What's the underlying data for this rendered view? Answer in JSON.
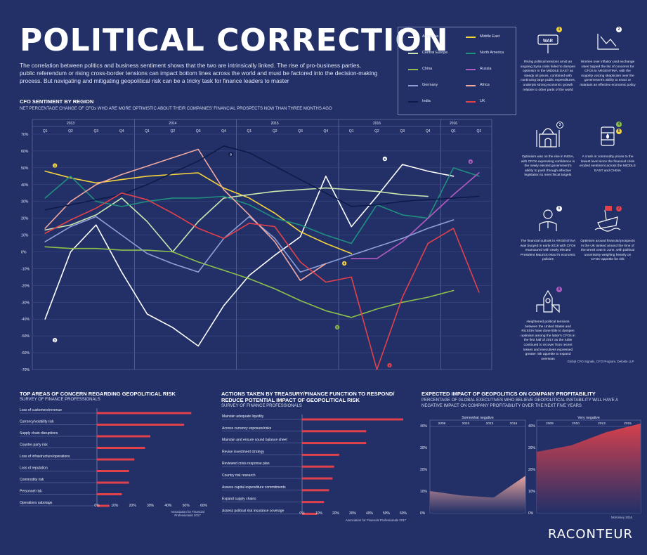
{
  "header": {
    "title": "POLITICAL CORRECTION",
    "intro": "The correlation between politics and business sentiment shows that the two are intrinsically linked. The rise of pro-business parties, public referendum or rising cross-border tensions can impact bottom lines across the world and must be factored into the decision-making process. But navigating and mitigating geopolitical risk can be a tricky task for finance leaders to master"
  },
  "main_chart": {
    "title": "CFO SENTIMENT BY REGION",
    "subtitle": "NET PERCENTAGE CHANGE OF CFOs WHO ARE MORE OPTIMISTIC ABOUT THEIR COMPANIES' FINANCIAL PROSPECTS NOW THAN THREE MONTHS AGO"
  },
  "legend": [
    {
      "name": "Argentina",
      "color": "#ffffff"
    },
    {
      "name": "Middle East",
      "color": "#f5d33c"
    },
    {
      "name": "Central Europe",
      "color": "#c9e6b0"
    },
    {
      "name": "North America",
      "color": "#1f8f7e"
    },
    {
      "name": "China",
      "color": "#8cc04a"
    },
    {
      "name": "Russia",
      "color": "#b35ac0"
    },
    {
      "name": "Germany",
      "color": "#8e9fd8"
    },
    {
      "name": "Africa",
      "color": "#f2a9a0"
    },
    {
      "name": "India",
      "color": "#0d1a4a"
    },
    {
      "name": "UK",
      "color": "#e0414b"
    }
  ],
  "cards": [
    {
      "num": "1",
      "color": "#f5d33c",
      "icon": "war-sign-icon",
      "text": "Rising political tensions amid an ongoing Syria crisis failed to dampen optimism in the MIDDLE EAST as steady oil prices, combined with continuing large public expenditures, underpin strong economic growth relative to other parts of the world"
    },
    {
      "num": "2",
      "color": "#ffffff",
      "icon": "falling-chart-icon",
      "text": "Worries over inflation and exchange rates topped the list of concerns for CFOs in ARGENTINA, with the majority voicing skepticism over the government's ability to enact or maintain an effective economic policy"
    },
    {
      "num": "3",
      "color": "#1b2a66",
      "icon": "taj-mahal-icon",
      "text": "Optimism was on the rise in INDIA, with CFOs expressing confidence in the newly elected government's ability to push through effective legislation to meet fiscal targets"
    },
    {
      "num": "4",
      "color": "#8cc04a",
      "num2": "5",
      "color2": "#f5d33c",
      "icon": "oil-barrel-icon",
      "text": "A crash in commodity prices to the lowest level since the financial crisis eroded sentiment across the MIDDLE EAST and CHINA"
    },
    {
      "num": "6",
      "color": "#ffffff",
      "icon": "businessman-icon",
      "text": "The financial outlook in ARGENTINA was buoyed in early-2016 with CFOs enamoured with newly elected President Mauricio Macri's economic policies"
    },
    {
      "num": "7",
      "color": "#e0414b",
      "icon": "sinking-ship-icon",
      "text": "Optimism around financial prospects in the UK tanked around the time of the Brexit vote in June, with political uncertainty weighing heavily on CFOs' appetite for risk"
    },
    {
      "num": "8",
      "color": "#b35ac0",
      "icon": "kremlin-icon",
      "text": "Heightened political tensions between the United States and RUSSIA have done little to dampen optimism among the latter's CFOs in the first half of 2017 as the ruble continued to recover from recent losses and executives expressed greater risk appetite to expand overseas"
    }
  ],
  "source_main": "Global CFO Signals, CFO Program, Deloitte LLP",
  "chart_data": [
    {
      "type": "line",
      "title": "CFO SENTIMENT BY REGION",
      "x": [
        "2013 Q1",
        "2013 Q2",
        "2013 Q3",
        "2013 Q4",
        "2014 Q1",
        "2014 Q2",
        "2014 Q3",
        "2014 Q4",
        "2015 Q1",
        "2015 Q2",
        "2015 Q3",
        "2015 Q4",
        "2016 Q1",
        "2016 Q2",
        "2016 Q3",
        "2016 Q4",
        "2016 Q1",
        "2016 Q2"
      ],
      "years": [
        {
          "label": "2013",
          "col": 1.5
        },
        {
          "label": "2014",
          "col": 5.5
        },
        {
          "label": "2015",
          "col": 9.5
        },
        {
          "label": "2016",
          "col": 13.5
        },
        {
          "label": "2016",
          "col": 16.5
        }
      ],
      "quarters": [
        "Q1",
        "Q2",
        "Q3",
        "Q4",
        "Q1",
        "Q2",
        "Q3",
        "Q4",
        "Q1",
        "Q2",
        "Q3",
        "Q4",
        "Q1",
        "Q2",
        "Q3",
        "Q4",
        "Q1",
        "Q2"
      ],
      "ylim": [
        -70,
        70
      ],
      "yticks": [
        "70%",
        "60%",
        "50%",
        "40%",
        "30%",
        "20%",
        "10%",
        "0%",
        "-10%",
        "-20%",
        "-30%",
        "-40%",
        "-50%",
        "-60%",
        "-70%"
      ],
      "series": [
        {
          "name": "Argentina",
          "color": "#ffffff",
          "values": [
            -40,
            0,
            16,
            -12,
            -37,
            -45,
            -56,
            -32,
            -14,
            -2,
            9,
            45,
            15,
            33,
            52,
            48,
            45,
            null
          ]
        },
        {
          "name": "Middle East",
          "color": "#f5d33c",
          "values": [
            48,
            44,
            41,
            43,
            45,
            46,
            47,
            38,
            32,
            23,
            12,
            5,
            -1,
            null,
            null,
            null,
            null,
            null
          ]
        },
        {
          "name": "Central Europe",
          "color": "#c9e6b0",
          "values": [
            13,
            16,
            22,
            32,
            18,
            0,
            18,
            32,
            34,
            36,
            37,
            38,
            37,
            36,
            34,
            33,
            null,
            null
          ]
        },
        {
          "name": "North America",
          "color": "#1f8f7e",
          "values": [
            32,
            45,
            30,
            27,
            30,
            32,
            32,
            33,
            28,
            20,
            16,
            10,
            5,
            28,
            22,
            20,
            50,
            45
          ]
        },
        {
          "name": "China",
          "color": "#8cc04a",
          "values": [
            3,
            2,
            2,
            1,
            1,
            0,
            -6,
            -11,
            -16,
            -22,
            -29,
            -35,
            -39,
            -34,
            -30,
            -27,
            -23,
            null
          ]
        },
        {
          "name": "Russia",
          "color": "#b35ac0",
          "values": [
            null,
            null,
            null,
            null,
            null,
            null,
            null,
            null,
            null,
            null,
            null,
            null,
            -4,
            -4,
            6,
            20,
            34,
            47
          ]
        },
        {
          "name": "Germany",
          "color": "#8e9fd8",
          "values": [
            6,
            15,
            21,
            10,
            -1,
            -7,
            -12,
            8,
            21,
            8,
            -12,
            -7,
            -2,
            3,
            8,
            14,
            19,
            null
          ]
        },
        {
          "name": "Africa",
          "color": "#f2a9a0",
          "values": [
            14,
            30,
            40,
            46,
            51,
            56,
            61,
            37,
            22,
            6,
            -17,
            -7,
            null,
            null,
            null,
            null,
            null,
            null
          ]
        },
        {
          "name": "India",
          "color": "#0d1a4a",
          "values": [
            25,
            28,
            31,
            34,
            40,
            47,
            54,
            63,
            59,
            51,
            43,
            35,
            27,
            28,
            30,
            31,
            32,
            33
          ]
        },
        {
          "name": "UK",
          "color": "#e0414b",
          "values": [
            11,
            19,
            26,
            35,
            31,
            23,
            14,
            8,
            17,
            15,
            -6,
            -18,
            -15,
            -70,
            -27,
            5,
            14,
            -24
          ]
        }
      ],
      "markers": [
        {
          "label": "1",
          "series": "Middle East",
          "x": 0,
          "dx": 14,
          "dy": -8
        },
        {
          "label": "2",
          "series": "Argentina",
          "x": 0,
          "dx": 14,
          "dy": 30
        },
        {
          "label": "3",
          "series": "India",
          "x": 7,
          "dx": 10,
          "dy": 12
        },
        {
          "label": "4",
          "series": "Middle East",
          "x": 12,
          "dx": -10,
          "dy": 14
        },
        {
          "label": "5",
          "series": "China",
          "x": 12,
          "dx": -20,
          "dy": 14
        },
        {
          "label": "6",
          "series": "Argentina",
          "x": 14,
          "dx": -25,
          "dy": -8
        },
        {
          "label": "7",
          "series": "UK",
          "x": 13,
          "dx": 18,
          "dy": -6
        },
        {
          "label": "8",
          "series": "Russia",
          "x": 17,
          "dx": -12,
          "dy": -16
        }
      ]
    },
    {
      "type": "bar",
      "title": "TOP AREAS OF CONCERN REGARDING GEOPOLITICAL RISK",
      "subtitle": "SURVEY OF FINANCE PROFESSIONALS",
      "categories": [
        "Loss of customers/revenue",
        "Currency/volatility risk",
        "Supply chain disruptions",
        "Counter-party risk",
        "Loss of infrastructure/operations",
        "Loss of reputation",
        "Commodity risk",
        "Personnel risk",
        "Operations sabotage"
      ],
      "values": [
        53,
        49,
        30,
        27,
        21,
        18,
        18,
        14,
        7
      ],
      "xlim": [
        0,
        60
      ],
      "xticks": [
        "0%",
        "10%",
        "20%",
        "30%",
        "40%",
        "50%",
        "60%"
      ],
      "source": "Association for Financial Professionals 2017"
    },
    {
      "type": "bar",
      "title": "ACTIONS TAKEN BY TREASURY/FINANCE FUNCTION TO RESPOND/ REDUCE POTENTIAL IMPACT OF GEOPOLITICAL RISK",
      "subtitle": "SURVEY OF FINANCE PROFESSIONALS",
      "categories": [
        "Maintain adequate liquidity",
        "Access currency exposure/risks",
        "Maintain and ensure sound balance sheet",
        "Revise investment strategy",
        "Reviewed crisis response plan",
        "Country risk research",
        "Assess capital expenditure commitments",
        "Expand supply chains",
        "Assess political risk insurance coverage"
      ],
      "values": [
        60,
        38,
        38,
        22,
        19,
        18,
        16,
        13,
        9
      ],
      "xlim": [
        0,
        60
      ],
      "xticks": [
        "0%",
        "10%",
        "20%",
        "30%",
        "40%",
        "50%",
        "60%"
      ],
      "source": "Association for Financial Professionals 2017"
    },
    {
      "type": "area",
      "title": "EXPECTED IMPACT OF GEOPOLITICS ON COMPANY PROFITABILITY",
      "subtitle": "PERCENTAGE OF GLOBAL EXECUTIVES WHO BELIEVE GEOPOLITICAL INSTABILITY WILL HAVE A NEGATIVE IMPACT ON COMPANY PROFITABILITY OVER THE NEXT FIVE YEARS",
      "panels": [
        {
          "name": "Somewhat negative",
          "x": [
            "2009",
            "2010",
            "2013",
            "2015"
          ],
          "values": [
            10,
            8,
            7,
            17
          ],
          "color": "#f2a9a0"
        },
        {
          "name": "Very negative",
          "x": [
            "2009",
            "2010",
            "2013",
            "2015"
          ],
          "values": [
            28,
            31,
            37,
            41
          ],
          "color": "#e0414b"
        }
      ],
      "ylim": [
        0,
        40
      ],
      "yticks": [
        "40%",
        "30%",
        "20%",
        "10%",
        "0%"
      ],
      "source": "McKinsey 2016"
    }
  ],
  "brand": "RACONTEUR"
}
